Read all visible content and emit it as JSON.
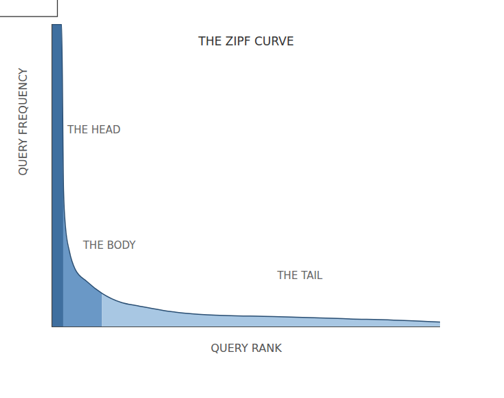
{
  "chart_data": {
    "type": "area",
    "title": "THE ZIPF CURVE",
    "x_label": "QUERY RANK",
    "y_label": "QUERY FREQUENCY",
    "xlim": [
      0,
      100
    ],
    "ylim": [
      0,
      100
    ],
    "xticks": [],
    "yticks": [],
    "tick_labels": false,
    "grid": false,
    "series": [
      {
        "name": "THE HEAD",
        "color": "#3f6f9f",
        "x": [
          0,
          2.5,
          3
        ],
        "values": [
          100,
          100,
          45
        ]
      },
      {
        "name": "THE BODY",
        "color": "#6a98c6",
        "x": [
          3,
          3.5,
          4.5,
          6,
          9,
          13
        ],
        "values": [
          45,
          33,
          25,
          19,
          15,
          11
        ]
      },
      {
        "name": "THE TAIL",
        "color": "#a8c7e3",
        "x": [
          13,
          18,
          22,
          31,
          40,
          57,
          75,
          93,
          100
        ],
        "values": [
          11,
          8,
          7,
          5,
          4,
          3.4,
          2.7,
          2,
          1.6
        ]
      }
    ],
    "annotations": [
      {
        "text": "THE HEAD",
        "x": 4,
        "y": 65
      },
      {
        "text": "THE BODY",
        "x": 8,
        "y": 27
      },
      {
        "text": "THE TAIL",
        "x": 58,
        "y": 17
      }
    ]
  }
}
